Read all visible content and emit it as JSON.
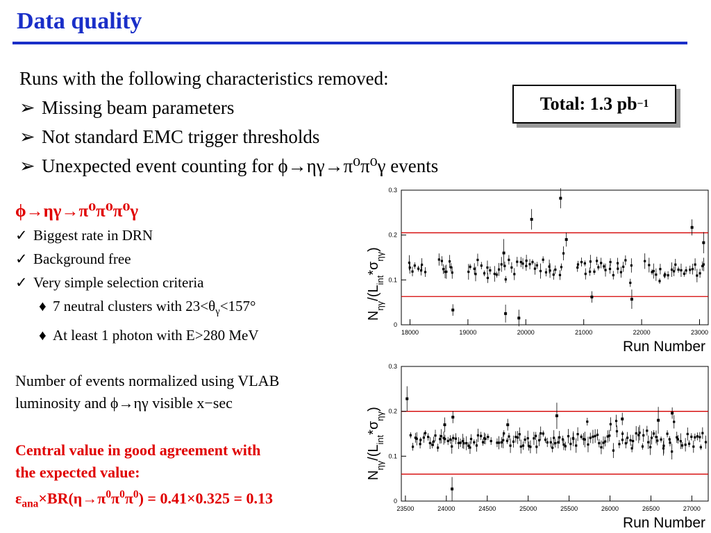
{
  "slide": {
    "title": "Data quality",
    "intro": {
      "lead": "Runs with the following characteristics removed:",
      "bullet_glyph": "➢",
      "bullets": [
        "Missing beam parameters",
        "Not standard EMC trigger thresholds",
        "Unexpected event counting for ϕ→ηγ→π⁰π⁰γ events"
      ]
    },
    "total": {
      "label": "Total: 1.3 pb",
      "exponent": "−1"
    },
    "decay": {
      "title": "ϕ→ηγ→π⁰π⁰π⁰γ",
      "check_glyph": "✓",
      "checks": [
        "Biggest rate in DRN",
        "Background free",
        "Very simple selection criteria"
      ],
      "diamond_glyph": "♦",
      "criteria": [
        "7 neutral clusters with 23<θ",
        "<157°",
        "At least 1 photon with E>280 MeV"
      ],
      "criteria_sub": "γ"
    },
    "normalization": [
      "Number of events normalized using VLAB",
      "luminosity and ϕ→ηγ  visible x−sec"
    ],
    "conclusion": {
      "lines": [
        "Central value in good agreement with",
        "the expected value:"
      ],
      "eps": "ε",
      "eps_sub": "ana",
      "formula_a": "×BR(η→π",
      "sup0": "0",
      "formula_b": ") = 0.41×0.325 = 0.13"
    }
  },
  "plot_labels": {
    "ylabel_main": "N",
    "ylabel_sub1": "ηγ",
    "ylabel_mid": "/(L",
    "ylabel_sub2": "int",
    "ylabel_star": "*σ",
    "ylabel_sub3": "ηγ",
    "ylabel_end": ")",
    "xlabel": "Run Number"
  },
  "chart_data": [
    {
      "type": "scatter",
      "xlabel": "Run Number",
      "ylabel": "Nηγ/(Lint*σηγ)",
      "xlim": [
        17850,
        23150
      ],
      "ylim": [
        0,
        0.3
      ],
      "xticks": [
        18000,
        19000,
        20000,
        21000,
        22000,
        23000
      ],
      "yticks": [
        0,
        0.1,
        0.2,
        0.3
      ],
      "reference_lines": [
        0.205,
        0.063
      ],
      "reference_color": "#d40000",
      "bands": [
        {
          "from": 17950,
          "to": 18280,
          "center": 0.132
        },
        {
          "from": 18500,
          "to": 18750,
          "center": 0.128
        },
        {
          "from": 18980,
          "to": 20680,
          "center": 0.128
        },
        {
          "from": 20850,
          "to": 21850,
          "center": 0.128
        },
        {
          "from": 22050,
          "to": 23100,
          "center": 0.126
        }
      ],
      "points": [
        {
          "x": 20600,
          "y": 0.282
        },
        {
          "x": 20100,
          "y": 0.235
        },
        {
          "x": 22870,
          "y": 0.217
        },
        {
          "x": 23070,
          "y": 0.183
        },
        {
          "x": 18740,
          "y": 0.033
        },
        {
          "x": 19650,
          "y": 0.025
        },
        {
          "x": 19880,
          "y": 0.015
        },
        {
          "x": 21140,
          "y": 0.062
        },
        {
          "x": 21830,
          "y": 0.057
        },
        {
          "x": 20700,
          "y": 0.19
        },
        {
          "x": 19620,
          "y": 0.16
        }
      ],
      "band_count": 120
    },
    {
      "type": "scatter",
      "xlabel": "Run Number",
      "ylabel": "Nηγ/(Lint*σηγ)",
      "xlim": [
        23450,
        27200
      ],
      "ylim": [
        0,
        0.3
      ],
      "xticks": [
        23500,
        24000,
        24500,
        25000,
        25500,
        26000,
        26500,
        27000
      ],
      "yticks": [
        0,
        0.1,
        0.2,
        0.3
      ],
      "reference_lines": [
        0.2,
        0.06
      ],
      "reference_color": "#d40000",
      "bands": [
        {
          "from": 23560,
          "to": 24550,
          "center": 0.135
        },
        {
          "from": 24600,
          "to": 27180,
          "center": 0.135
        }
      ],
      "points": [
        {
          "x": 23520,
          "y": 0.228
        },
        {
          "x": 24080,
          "y": 0.187
        },
        {
          "x": 24070,
          "y": 0.027
        },
        {
          "x": 23980,
          "y": 0.17
        },
        {
          "x": 25350,
          "y": 0.19
        },
        {
          "x": 26760,
          "y": 0.196
        },
        {
          "x": 26150,
          "y": 0.183
        },
        {
          "x": 26590,
          "y": 0.18
        },
        {
          "x": 24750,
          "y": 0.17
        }
      ],
      "band_count": 150
    }
  ]
}
